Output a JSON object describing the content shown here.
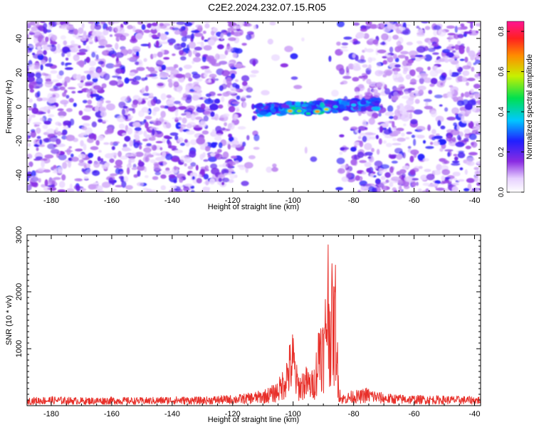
{
  "title": "C2E2.2024.232.07.15.R05",
  "colors": {
    "signal_line": "#e8302a",
    "noise_purple": "#8a2be2",
    "background": "#ffffff"
  },
  "chart_data": [
    {
      "type": "heatmap",
      "xlabel": "Height of straight line (km)",
      "ylabel": "Frequency (Hz)",
      "xlim": [
        -188,
        -38
      ],
      "ylim": [
        -50,
        50
      ],
      "x_ticks": [
        -180,
        -160,
        -140,
        -120,
        -100,
        -80,
        -60,
        -40
      ],
      "y_ticks": [
        -40,
        -20,
        0,
        20,
        40
      ],
      "colorbar": {
        "label": "Normalized spectral amplitude",
        "range": [
          0,
          0.85
        ],
        "ticks": [
          "0.0",
          "0.2",
          "0.4",
          "0.6",
          "0.8"
        ],
        "colormap": "rainbow (white → violet → blue → cyan → green → yellow → red → magenta)"
      },
      "features": {
        "empty_region_km": [
          -112,
          -85
        ],
        "signal_band": {
          "x_range_km": [
            -112,
            -72
          ],
          "center_frequency_hz": 0,
          "peak_km": [
            -101,
            -90
          ]
        }
      }
    },
    {
      "type": "line",
      "xlabel": "Height of straight line (km)",
      "ylabel": "SNR (10 * v/v)",
      "xlim": [
        -188,
        -38
      ],
      "ylim": [
        0,
        3000
      ],
      "x_ticks": [
        -180,
        -160,
        -140,
        -120,
        -100,
        -80,
        -60,
        -40
      ],
      "y_ticks": [
        1000,
        2000,
        3000
      ],
      "series": [
        {
          "color": "#e8302a",
          "x": [
            -188,
            -180,
            -170,
            -160,
            -150,
            -140,
            -130,
            -125,
            -120,
            -115,
            -110,
            -106,
            -104,
            -102,
            -100,
            -99,
            -98,
            -96,
            -94,
            -93,
            -92,
            -91,
            -90,
            -89.5,
            -89,
            -88.5,
            -88,
            -87.5,
            -87,
            -86.5,
            -86,
            -85.5,
            -85,
            -84,
            -82,
            -80,
            -78,
            -76,
            -70,
            -65,
            -60,
            -50,
            -40,
            -38
          ],
          "y": [
            130,
            150,
            130,
            140,
            130,
            150,
            140,
            160,
            170,
            200,
            250,
            350,
            500,
            850,
            1250,
            700,
            500,
            650,
            550,
            650,
            1100,
            1800,
            1400,
            1650,
            2500,
            3000,
            2200,
            2000,
            2400,
            1900,
            2500,
            1400,
            500,
            180,
            210,
            260,
            240,
            300,
            200,
            180,
            170,
            160,
            150,
            150
          ]
        }
      ]
    }
  ]
}
